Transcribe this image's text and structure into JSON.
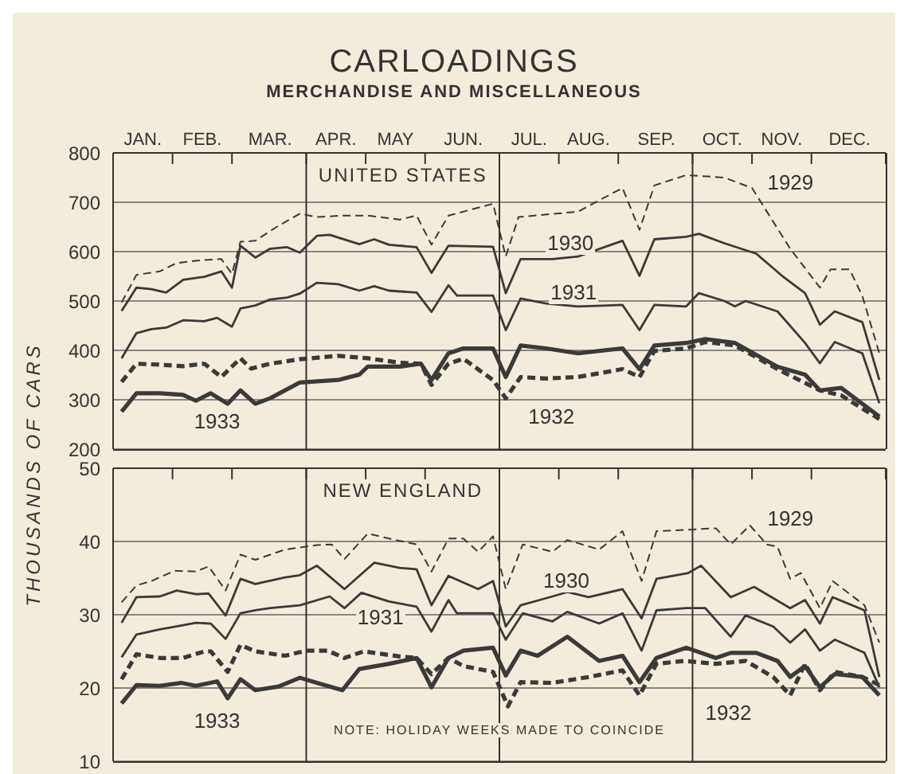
{
  "chart_data": [
    {
      "type": "line",
      "title": "CARLOADINGS",
      "subtitle": "MERCHANDISE AND MISCELLANEOUS",
      "ylabel": "THOUSANDS OF CARS",
      "annotations": [
        "UNITED STATES"
      ],
      "xlim": [
        "--01-01",
        "--12-31"
      ],
      "xticks": [
        {
          "value": "--01-01",
          "label": null
        },
        {
          "value": "--01-15",
          "label": "JAN."
        },
        {
          "value": "--01-29",
          "label": null
        },
        {
          "value": "--02-12",
          "label": "FEB."
        },
        {
          "value": "--02-26",
          "label": null
        },
        {
          "value": "--03-16",
          "label": "MAR."
        },
        {
          "value": "--04-02",
          "label": null
        },
        {
          "value": "--04-16",
          "label": "APR."
        },
        {
          "value": "--04-30",
          "label": null
        },
        {
          "value": "--05-14",
          "label": "MAY"
        },
        {
          "value": "--05-28",
          "label": null
        },
        {
          "value": "--06-15",
          "label": "JUN."
        },
        {
          "value": "--07-02",
          "label": null
        },
        {
          "value": "--07-16",
          "label": "JUL."
        },
        {
          "value": "--07-30",
          "label": null
        },
        {
          "value": "--08-13",
          "label": "AUG."
        },
        {
          "value": "--08-27",
          "label": null
        },
        {
          "value": "--09-14",
          "label": "SEP."
        },
        {
          "value": "--10-01",
          "label": null
        },
        {
          "value": "--10-15",
          "label": "OCT."
        },
        {
          "value": "--10-29",
          "label": null
        },
        {
          "value": "--11-12",
          "label": "NOV."
        },
        {
          "value": "--11-26",
          "label": null
        },
        {
          "value": "--12-14",
          "label": "DEC."
        },
        {
          "value": "--12-31",
          "label": null
        }
      ],
      "ylim": [
        200,
        800
      ],
      "yticks": [
        200,
        300,
        400,
        500,
        600,
        700,
        800
      ],
      "grid": "y",
      "marker": "none",
      "ref_lines": [
        {
          "axis": "x",
          "value": "--04-02"
        },
        {
          "axis": "x",
          "value": "--07-02"
        },
        {
          "axis": "x",
          "value": "--10-01"
        }
      ],
      "series": [
        {
          "name": "1929",
          "color": "#3a3a3a",
          "line_style": "dashed",
          "x": [
            "--01-05",
            "--01-12",
            "--01-23",
            "--01-31",
            "--02-06",
            "--02-13",
            "--02-21",
            "--02-26",
            "--03-02",
            "--03-09",
            "--03-19",
            "--03-30",
            "--04-07",
            "--04-19",
            "--05-01",
            "--05-16",
            "--05-24",
            "--05-31",
            "--06-08",
            "--06-29",
            "--07-05",
            "--07-11",
            "--08-08",
            "--08-29",
            "--09-06",
            "--09-13",
            "--09-28",
            "--10-16",
            "--10-29",
            "--11-16",
            "--11-30",
            "--12-05",
            "--12-14",
            "--12-20",
            "--12-28"
          ],
          "values": [
            497,
            553,
            560,
            577,
            580,
            583,
            585,
            555,
            620,
            622,
            650,
            677,
            670,
            673,
            673,
            665,
            673,
            614,
            673,
            697,
            590,
            670,
            681,
            729,
            644,
            734,
            755,
            750,
            729,
            606,
            527,
            564,
            564,
            510,
            394
          ]
        },
        {
          "name": "1930",
          "color": "#3a3a3a",
          "line_style": "solid",
          "x": [
            "--01-05",
            "--01-12",
            "--01-19",
            "--01-26",
            "--02-03",
            "--02-13",
            "--02-21",
            "--02-26",
            "--03-02",
            "--03-09",
            "--03-16",
            "--03-24",
            "--03-30",
            "--04-07",
            "--04-13",
            "--04-27",
            "--05-04",
            "--05-11",
            "--05-24",
            "--05-31",
            "--06-08",
            "--06-29",
            "--07-05",
            "--07-12",
            "--07-27",
            "--08-08",
            "--08-29",
            "--09-06",
            "--09-13",
            "--09-28",
            "--10-04",
            "--10-16",
            "--10-31",
            "--11-13",
            "--11-23",
            "--11-30",
            "--12-07",
            "--12-20",
            "--12-28"
          ],
          "values": [
            480,
            527,
            524,
            517,
            543,
            549,
            560,
            527,
            612,
            588,
            606,
            609,
            598,
            632,
            634,
            615,
            625,
            614,
            609,
            557,
            612,
            610,
            516,
            585,
            585,
            590,
            622,
            551,
            625,
            630,
            636,
            617,
            596,
            548,
            516,
            452,
            479,
            457,
            340
          ]
        },
        {
          "name": "1931",
          "color": "#3a3a3a",
          "line_style": "solid",
          "x": [
            "--01-05",
            "--01-12",
            "--01-19",
            "--01-26",
            "--02-03",
            "--02-13",
            "--02-19",
            "--02-26",
            "--03-02",
            "--03-09",
            "--03-16",
            "--03-24",
            "--03-30",
            "--04-07",
            "--04-17",
            "--04-27",
            "--05-04",
            "--05-11",
            "--05-24",
            "--05-31",
            "--06-08",
            "--06-12",
            "--06-29",
            "--07-05",
            "--07-12",
            "--07-24",
            "--08-08",
            "--08-29",
            "--09-06",
            "--09-13",
            "--09-28",
            "--10-04",
            "--10-16",
            "--10-21",
            "--10-26",
            "--11-10",
            "--11-23",
            "--11-30",
            "--12-07",
            "--12-20",
            "--12-28"
          ],
          "values": [
            384,
            435,
            443,
            446,
            461,
            459,
            466,
            448,
            485,
            491,
            503,
            507,
            515,
            537,
            534,
            521,
            530,
            521,
            517,
            478,
            532,
            511,
            511,
            441,
            505,
            495,
            489,
            492,
            441,
            492,
            489,
            516,
            500,
            489,
            500,
            479,
            415,
            374,
            417,
            394,
            293
          ]
        },
        {
          "name": "1932",
          "color": "#3a3a3a",
          "line_style": "dashed",
          "x": [
            "--01-05",
            "--01-12",
            "--01-23",
            "--02-03",
            "--02-13",
            "--02-21",
            "--03-02",
            "--03-07",
            "--03-16",
            "--03-30",
            "--04-17",
            "--05-01",
            "--05-16",
            "--05-26",
            "--05-31",
            "--06-08",
            "--06-15",
            "--06-29",
            "--07-05",
            "--07-12",
            "--07-24",
            "--08-08",
            "--08-29",
            "--09-06",
            "--09-13",
            "--09-28",
            "--10-07",
            "--10-21",
            "--11-10",
            "--11-30",
            "--12-10",
            "--12-28"
          ],
          "values": [
            336,
            373,
            371,
            368,
            373,
            346,
            384,
            363,
            373,
            382,
            389,
            384,
            375,
            373,
            330,
            373,
            383,
            340,
            303,
            346,
            343,
            346,
            362,
            346,
            399,
            404,
            417,
            410,
            362,
            319,
            309,
            261
          ]
        },
        {
          "name": "1933",
          "color": "#3a3a3a",
          "line_style": "solid",
          "x": [
            "--01-05",
            "--01-12",
            "--01-23",
            "--02-03",
            "--02-09",
            "--02-16",
            "--02-24",
            "--03-02",
            "--03-09",
            "--03-16",
            "--03-30",
            "--04-17",
            "--04-27",
            "--05-01",
            "--05-16",
            "--05-26",
            "--05-31",
            "--06-08",
            "--06-15",
            "--06-29",
            "--07-05",
            "--07-12",
            "--07-24",
            "--08-08",
            "--08-29",
            "--09-06",
            "--09-13",
            "--09-28",
            "--10-07",
            "--10-21",
            "--11-10",
            "--11-23",
            "--11-30",
            "--12-10",
            "--12-28"
          ],
          "values": [
            276,
            313,
            313,
            310,
            298,
            313,
            292,
            319,
            292,
            303,
            335,
            340,
            351,
            367,
            367,
            373,
            340,
            394,
            404,
            404,
            346,
            410,
            404,
            394,
            404,
            362,
            410,
            415,
            423,
            415,
            367,
            351,
            319,
            324,
            266
          ]
        }
      ]
    },
    {
      "type": "line",
      "title": "NEW ENGLAND",
      "annotations": [
        "NOTE: HOLIDAY WEEKS MADE TO COINCIDE"
      ],
      "tick_labels": "y",
      "xlim": [
        "--01-01",
        "--12-31"
      ],
      "xticks": [
        {
          "value": "--01-01",
          "label": null
        },
        {
          "value": "--01-29",
          "label": null
        },
        {
          "value": "--02-26",
          "label": null
        },
        {
          "value": "--04-02",
          "label": null
        },
        {
          "value": "--04-30",
          "label": null
        },
        {
          "value": "--05-28",
          "label": null
        },
        {
          "value": "--07-02",
          "label": null
        },
        {
          "value": "--07-30",
          "label": null
        },
        {
          "value": "--08-27",
          "label": null
        },
        {
          "value": "--10-01",
          "label": null
        },
        {
          "value": "--10-29",
          "label": null
        },
        {
          "value": "--11-26",
          "label": null
        },
        {
          "value": "--12-31",
          "label": null
        }
      ],
      "ylim": [
        10,
        50
      ],
      "yticks": [
        10,
        20,
        30,
        40,
        50
      ],
      "grid": "y",
      "marker": "none",
      "ref_lines": [
        {
          "axis": "x",
          "value": "--04-02"
        },
        {
          "axis": "x",
          "value": "--07-02"
        },
        {
          "axis": "x",
          "value": "--10-01"
        }
      ],
      "series": [
        {
          "name": "1929",
          "color": "#3a3a3a",
          "line_style": "dashed",
          "x": [
            "--01-05",
            "--01-12",
            "--01-19",
            "--01-30",
            "--02-09",
            "--02-15",
            "--02-23",
            "--03-02",
            "--03-09",
            "--03-23",
            "--04-07",
            "--04-14",
            "--04-20",
            "--05-01",
            "--05-11",
            "--05-24",
            "--05-31",
            "--06-08",
            "--06-15",
            "--06-22",
            "--06-29",
            "--07-05",
            "--07-13",
            "--07-27",
            "--08-03",
            "--08-18",
            "--08-29",
            "--09-07",
            "--09-14",
            "--10-12",
            "--10-19",
            "--10-28",
            "--11-05",
            "--11-10",
            "--11-16",
            "--11-21",
            "--11-30",
            "--12-06",
            "--12-21",
            "--12-28"
          ],
          "values": [
            31.7,
            34.0,
            34.6,
            36.0,
            35.9,
            36.6,
            33.3,
            38.2,
            37.5,
            38.9,
            39.5,
            39.6,
            37.6,
            41.1,
            40.4,
            39.6,
            35.9,
            40.4,
            40.4,
            38.6,
            40.7,
            33.5,
            39.6,
            38.6,
            40.2,
            38.9,
            41.4,
            34.6,
            41.4,
            41.8,
            39.6,
            42.2,
            39.6,
            39.3,
            34.9,
            35.7,
            30.9,
            34.6,
            31.3,
            26.2
          ]
        },
        {
          "name": "1930",
          "color": "#3a3a3a",
          "line_style": "solid",
          "x": [
            "--01-05",
            "--01-12",
            "--01-23",
            "--01-31",
            "--02-09",
            "--02-15",
            "--02-23",
            "--03-02",
            "--03-09",
            "--03-23",
            "--03-30",
            "--04-07",
            "--04-20",
            "--05-04",
            "--05-16",
            "--05-24",
            "--05-31",
            "--06-08",
            "--06-22",
            "--06-29",
            "--07-05",
            "--07-12",
            "--07-27",
            "--08-03",
            "--08-13",
            "--08-29",
            "--09-07",
            "--09-14",
            "--09-29",
            "--10-05",
            "--10-19",
            "--10-30",
            "--11-16",
            "--11-23",
            "--11-30",
            "--12-06",
            "--12-21",
            "--12-28"
          ],
          "values": [
            28.9,
            32.4,
            32.5,
            33.3,
            32.8,
            32.9,
            29.9,
            34.9,
            34.2,
            35.1,
            35.4,
            36.7,
            33.5,
            37.1,
            36.4,
            36.2,
            31.3,
            35.3,
            33.5,
            34.6,
            28.4,
            31.3,
            32.5,
            33.1,
            32.4,
            33.5,
            29.5,
            34.9,
            35.7,
            36.7,
            32.4,
            33.8,
            30.9,
            32.0,
            28.8,
            32.4,
            30.6,
            21.5
          ]
        },
        {
          "name": "1931",
          "color": "#3a3a3a",
          "line_style": "solid",
          "x": [
            "--01-05",
            "--01-12",
            "--01-23",
            "--01-31",
            "--02-09",
            "--02-16",
            "--02-23",
            "--03-02",
            "--03-09",
            "--03-16",
            "--03-30",
            "--04-13",
            "--04-20",
            "--04-28",
            "--05-11",
            "--05-24",
            "--05-31",
            "--06-08",
            "--06-12",
            "--06-29",
            "--07-05",
            "--07-13",
            "--07-27",
            "--08-03",
            "--08-18",
            "--08-29",
            "--09-07",
            "--09-14",
            "--09-28",
            "--10-07",
            "--10-19",
            "--10-26",
            "--11-08",
            "--11-16",
            "--11-23",
            "--11-30",
            "--12-07",
            "--12-21",
            "--12-28"
          ],
          "values": [
            24.2,
            27.3,
            28.0,
            28.4,
            28.9,
            28.8,
            26.7,
            30.2,
            30.6,
            30.9,
            31.3,
            32.5,
            30.9,
            33.0,
            31.8,
            31.1,
            27.7,
            32.0,
            30.2,
            30.2,
            26.6,
            30.2,
            29.1,
            30.4,
            28.8,
            30.2,
            25.1,
            30.6,
            30.9,
            30.9,
            27.0,
            29.9,
            28.4,
            26.2,
            28.0,
            25.1,
            26.6,
            24.8,
            20.1
          ]
        },
        {
          "name": "1932",
          "color": "#3a3a3a",
          "line_style": "dashed",
          "x": [
            "--01-05",
            "--01-12",
            "--01-23",
            "--02-03",
            "--02-13",
            "--02-16",
            "--02-24",
            "--03-02",
            "--03-09",
            "--03-23",
            "--04-02",
            "--04-12",
            "--04-20",
            "--04-29",
            "--05-16",
            "--05-24",
            "--05-31",
            "--06-08",
            "--06-15",
            "--06-29",
            "--07-06",
            "--07-12",
            "--07-27",
            "--08-13",
            "--08-29",
            "--09-06",
            "--09-14",
            "--09-27",
            "--10-12",
            "--10-26",
            "--11-08",
            "--11-16",
            "--11-23",
            "--11-30",
            "--12-07",
            "--12-20",
            "--12-28"
          ],
          "values": [
            21.2,
            24.6,
            24.1,
            24.1,
            25.0,
            25.0,
            22.2,
            25.9,
            25.0,
            24.4,
            25.1,
            25.1,
            24.1,
            25.0,
            24.3,
            24.1,
            21.9,
            24.1,
            23.0,
            22.2,
            17.5,
            20.8,
            20.7,
            21.5,
            22.4,
            19.0,
            23.3,
            23.7,
            23.3,
            23.7,
            21.5,
            19.0,
            23.3,
            19.7,
            22.2,
            21.5,
            20.4
          ]
        },
        {
          "name": "1933",
          "color": "#3a3a3a",
          "line_style": "solid",
          "x": [
            "--01-05",
            "--01-12",
            "--01-23",
            "--02-02",
            "--02-09",
            "--02-19",
            "--02-24",
            "--03-02",
            "--03-09",
            "--03-20",
            "--03-30",
            "--04-07",
            "--04-19",
            "--04-27",
            "--05-11",
            "--05-24",
            "--05-31",
            "--06-08",
            "--06-15",
            "--06-29",
            "--07-05",
            "--07-12",
            "--07-20",
            "--08-03",
            "--08-18",
            "--08-29",
            "--09-06",
            "--09-14",
            "--09-28",
            "--10-12",
            "--10-19",
            "--10-31",
            "--11-10",
            "--11-16",
            "--11-23",
            "--11-30",
            "--12-07",
            "--12-20",
            "--12-28"
          ],
          "values": [
            17.9,
            20.4,
            20.3,
            20.7,
            20.3,
            20.9,
            18.6,
            21.2,
            19.7,
            20.2,
            21.4,
            20.7,
            19.7,
            22.6,
            23.3,
            24.1,
            20.1,
            24.1,
            25.1,
            25.5,
            21.7,
            25.1,
            24.4,
            27.0,
            23.7,
            24.4,
            20.8,
            24.1,
            25.5,
            24.1,
            24.8,
            24.8,
            23.7,
            21.5,
            23.0,
            20.1,
            21.9,
            21.5,
            19.0
          ]
        }
      ]
    }
  ]
}
